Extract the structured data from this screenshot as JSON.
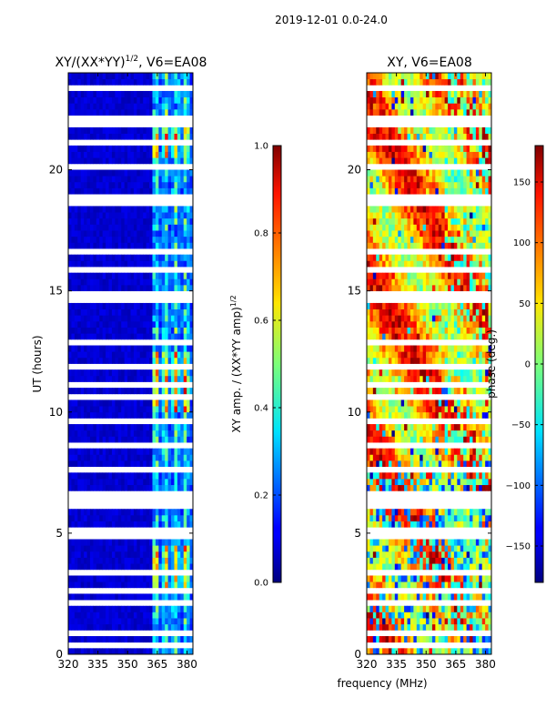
{
  "suptitle": "2019-12-01 0.0-24.0",
  "chart_data": [
    {
      "type": "heatmap",
      "title_base": "XY/(XX*YY)",
      "title_sup": "1/2",
      "title_suffix": ", V6=EA08",
      "xlabel": "",
      "ylabel": "UT (hours)",
      "xlim": [
        320,
        383
      ],
      "ylim": [
        0,
        24
      ],
      "xticks": [
        320,
        335,
        350,
        365,
        380
      ],
      "yticks": [
        0,
        5,
        10,
        15,
        20
      ],
      "colorbar": {
        "label_base": "XY amp. / (XX*YY amp)",
        "label_sup": "1/2",
        "range": [
          0.0,
          1.0
        ],
        "ticks": [
          "0.0",
          "0.2",
          "0.4",
          "0.6",
          "0.8",
          "1.0"
        ]
      }
    },
    {
      "type": "heatmap",
      "title": "XY, V6=EA08",
      "xlabel": "frequency (MHz)",
      "ylabel": "",
      "xlim": [
        320,
        383
      ],
      "ylim": [
        0,
        24
      ],
      "xticks": [
        320,
        335,
        350,
        365,
        380
      ],
      "yticks": [
        0,
        5,
        10,
        15,
        20
      ],
      "colorbar": {
        "label": "phase (deg.)",
        "range": [
          -180,
          180
        ],
        "ticks": [
          "−150",
          "−100",
          "−50",
          "0",
          "50",
          "100",
          "150"
        ]
      }
    }
  ]
}
